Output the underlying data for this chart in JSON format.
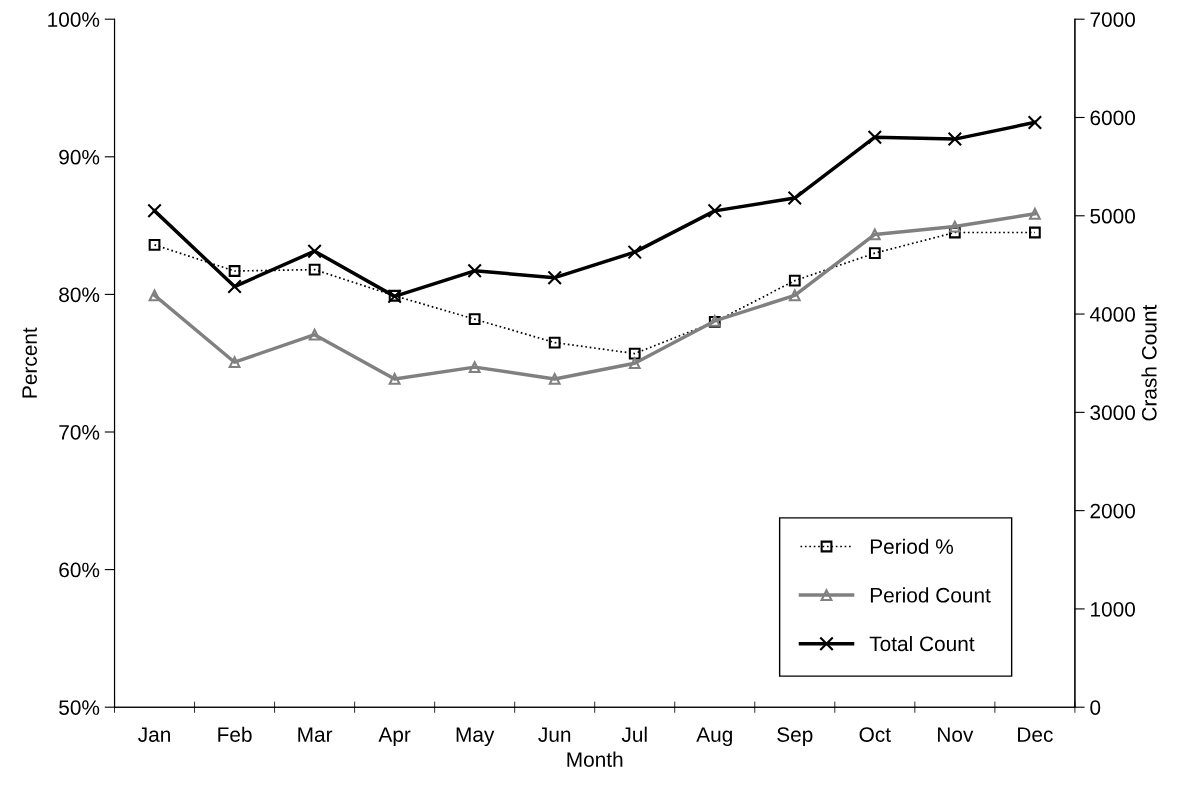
{
  "chart_data": {
    "type": "line",
    "xlabel": "Month",
    "ylabel": "Percent",
    "y2label": "Crash Count",
    "categories": [
      "Jan",
      "Feb",
      "Mar",
      "Apr",
      "May",
      "Jun",
      "Jul",
      "Aug",
      "Sep",
      "Oct",
      "Nov",
      "Dec"
    ],
    "series": [
      {
        "name": "Period %",
        "color": "#000000",
        "marker": "square",
        "line_style": "dotted",
        "values": [
          83.6,
          81.7,
          81.8,
          79.9,
          78.2,
          76.5,
          75.7,
          78.0,
          81.0,
          83.0,
          84.5,
          84.5
        ]
      },
      {
        "name": "Period Count",
        "color": "#808080",
        "marker": "triangle",
        "line_style": "solid",
        "axis": "y2",
        "values": [
          4190,
          3510,
          3790,
          3340,
          3460,
          3340,
          3500,
          3930,
          4190,
          4810,
          4890,
          5020
        ]
      },
      {
        "name": "Total Count",
        "color": "#000000",
        "marker": "cross",
        "line_style": "solid",
        "axis": "y2",
        "values": [
          5050,
          4280,
          4640,
          4180,
          4440,
          4370,
          4630,
          5050,
          5180,
          5800,
          5780,
          5950
        ]
      }
    ],
    "ylim": [
      50,
      100
    ],
    "yticks": [
      {
        "value": 50,
        "label": "50%"
      },
      {
        "value": 60,
        "label": "60%"
      },
      {
        "value": 70,
        "label": "70%"
      },
      {
        "value": 80,
        "label": "80%"
      },
      {
        "value": 90,
        "label": "90%"
      },
      {
        "value": 100,
        "label": "100%"
      }
    ],
    "y2lim": [
      0,
      7000
    ],
    "y2ticks": [
      0,
      1000,
      2000,
      3000,
      4000,
      5000,
      6000,
      7000
    ],
    "legend": "bottom right",
    "grid": false
  }
}
